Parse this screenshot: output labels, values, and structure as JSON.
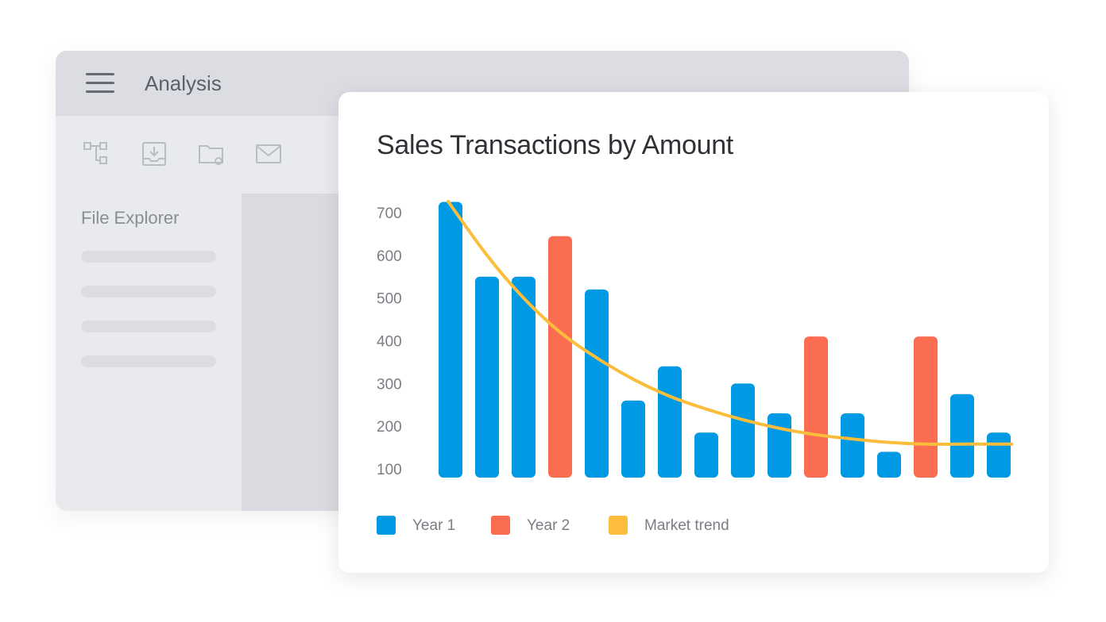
{
  "app": {
    "title": "Analysis",
    "toolbar_icons": [
      "hierarchy-icon",
      "download-tray-icon",
      "folder-settings-icon",
      "mail-icon"
    ],
    "explorer_title": "File Explorer",
    "explorer_placeholder_rows": 4
  },
  "chart_data": {
    "type": "bar",
    "title": "Sales Transactions by Amount",
    "xlabel": "",
    "ylabel": "",
    "ylim": [
      100,
      700
    ],
    "yticks": [
      700,
      600,
      500,
      400,
      300,
      200,
      100
    ],
    "grid": false,
    "legend_position": "bottom-left",
    "bars": [
      {
        "series": "Year 1",
        "value": 725
      },
      {
        "series": "Year 1",
        "value": 550
      },
      {
        "series": "Year 1",
        "value": 550
      },
      {
        "series": "Year 2",
        "value": 645
      },
      {
        "series": "Year 1",
        "value": 520
      },
      {
        "series": "Year 1",
        "value": 260
      },
      {
        "series": "Year 1",
        "value": 340
      },
      {
        "series": "Year 1",
        "value": 185
      },
      {
        "series": "Year 1",
        "value": 300
      },
      {
        "series": "Year 1",
        "value": 230
      },
      {
        "series": "Year 2",
        "value": 410
      },
      {
        "series": "Year 1",
        "value": 230
      },
      {
        "series": "Year 1",
        "value": 140
      },
      {
        "series": "Year 2",
        "value": 410
      },
      {
        "series": "Year 1",
        "value": 275
      },
      {
        "series": "Year 1",
        "value": 185
      }
    ],
    "trend": {
      "name": "Market trend",
      "values": [
        730,
        600,
        500,
        420,
        360,
        310,
        270,
        240,
        215,
        195,
        180,
        170,
        162,
        158,
        158,
        158
      ]
    },
    "series": [
      {
        "name": "Year 1",
        "color": "#0099e3"
      },
      {
        "name": "Year 2",
        "color": "#fb6d51"
      },
      {
        "name": "Market trend",
        "color": "#fbbd3b"
      }
    ]
  }
}
